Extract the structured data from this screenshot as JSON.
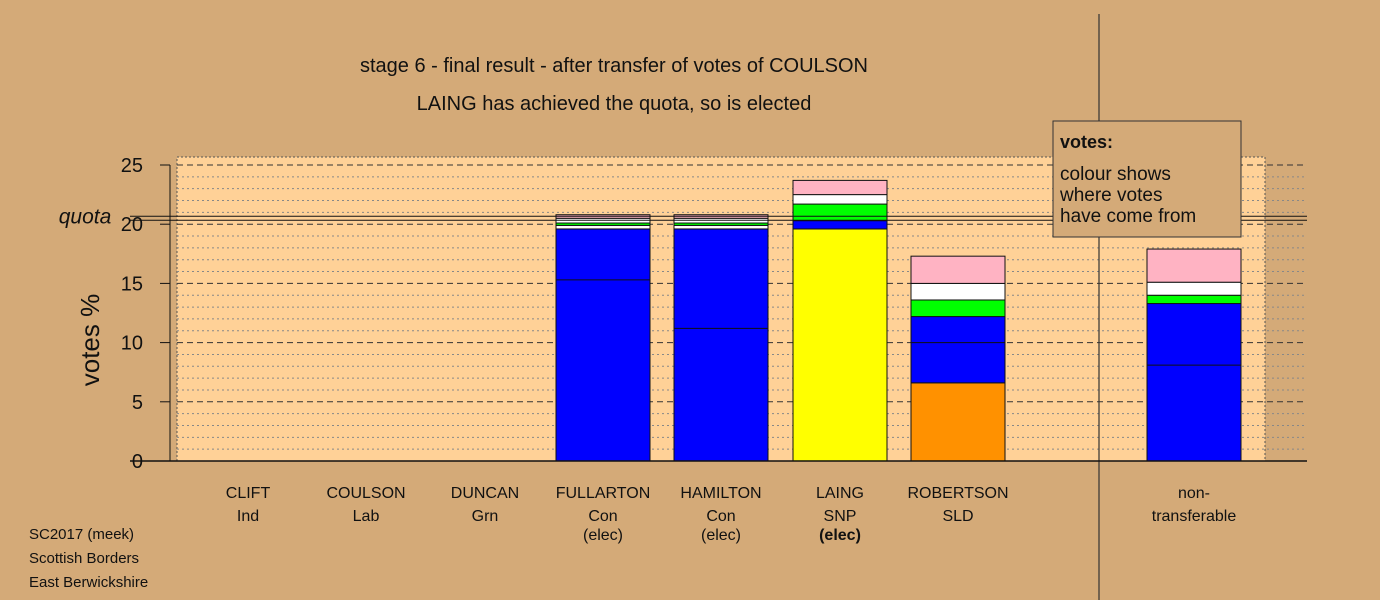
{
  "chart_data": {
    "type": "bar",
    "stacked": true,
    "title": "stage 6 - final result - after transfer of votes of COULSON",
    "subtitle": "LAING has achieved the quota, so is elected",
    "ylabel": "votes %",
    "ylim": [
      0,
      25
    ],
    "yticks": [
      0,
      5,
      10,
      15,
      20,
      25
    ],
    "quota": 20.5,
    "quota_label": "quota",
    "grid": true,
    "legend_position": "top-right",
    "legend": {
      "title": "votes:",
      "lines": [
        "colour shows",
        "where votes",
        "have come from"
      ]
    },
    "colors": {
      "blue": "#0000ff",
      "yellow": "#ffff00",
      "orange": "#ff9100",
      "green": "#00ff00",
      "white": "#ffffff",
      "pink": "#ffb3c3",
      "plot_bg": "#ffd197",
      "page_bg": "#d4aa78"
    },
    "categories": [
      {
        "name": "CLIFT",
        "party": "Ind",
        "note": "",
        "segments": []
      },
      {
        "name": "COULSON",
        "party": "Lab",
        "note": "",
        "segments": []
      },
      {
        "name": "DUNCAN",
        "party": "Grn",
        "note": "",
        "segments": []
      },
      {
        "name": "FULLARTON",
        "party": "Con",
        "note": "(elec)",
        "segments": [
          {
            "value": 19.6,
            "color": "blue"
          },
          {
            "value": 0.3,
            "color": "white"
          },
          {
            "value": 0.2,
            "color": "green"
          },
          {
            "value": 0.4,
            "color": "white"
          },
          {
            "value": 0.3,
            "color": "pink"
          }
        ],
        "divider": 15.3
      },
      {
        "name": "HAMILTON",
        "party": "Con",
        "note": "(elec)",
        "segments": [
          {
            "value": 19.6,
            "color": "blue"
          },
          {
            "value": 0.3,
            "color": "white"
          },
          {
            "value": 0.2,
            "color": "green"
          },
          {
            "value": 0.4,
            "color": "white"
          },
          {
            "value": 0.3,
            "color": "pink"
          }
        ],
        "divider": 11.2
      },
      {
        "name": "LAING",
        "party": "SNP",
        "note": "(elec)",
        "bold": true,
        "segments": [
          {
            "value": 19.6,
            "color": "yellow"
          },
          {
            "value": 0.7,
            "color": "blue"
          },
          {
            "value": 1.4,
            "color": "green"
          },
          {
            "value": 0.8,
            "color": "white"
          },
          {
            "value": 1.2,
            "color": "pink"
          }
        ],
        "divider": null
      },
      {
        "name": "ROBERTSON",
        "party": "SLD",
        "note": "",
        "segments": [
          {
            "value": 6.6,
            "color": "orange"
          },
          {
            "value": 5.6,
            "color": "blue"
          },
          {
            "value": 1.4,
            "color": "green"
          },
          {
            "value": 1.4,
            "color": "white"
          },
          {
            "value": 2.3,
            "color": "pink"
          }
        ],
        "divider": 10.0
      },
      {
        "name": "non-",
        "party": "transferable",
        "note": "",
        "segments": [
          {
            "value": 13.3,
            "color": "blue"
          },
          {
            "value": 0.7,
            "color": "green"
          },
          {
            "value": 1.1,
            "color": "white"
          },
          {
            "value": 2.8,
            "color": "pink"
          }
        ],
        "divider": 8.1
      }
    ]
  },
  "footer": {
    "line1": "SC2017 (meek)",
    "line2": "Scottish Borders",
    "line3": "East Berwickshire"
  }
}
